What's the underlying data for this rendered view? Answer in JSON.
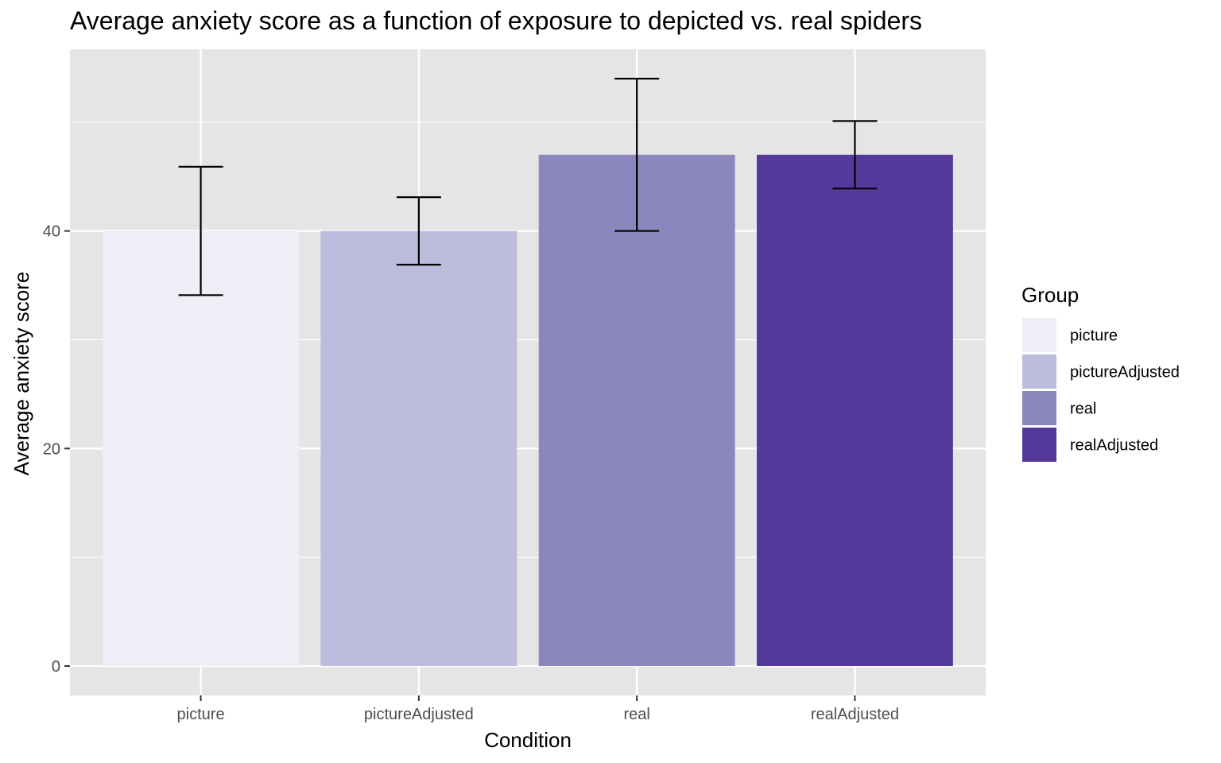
{
  "chart_data": {
    "type": "bar",
    "title": "Average anxiety score as a function of exposure to depicted vs. real spiders",
    "xlabel": "Condition",
    "ylabel": "Average anxiety score",
    "categories": [
      "picture",
      "pictureAdjusted",
      "real",
      "realAdjusted"
    ],
    "values": [
      40,
      40,
      47,
      47
    ],
    "error_bars": [
      {
        "lower": 34.1,
        "upper": 45.9
      },
      {
        "lower": 36.9,
        "upper": 43.1
      },
      {
        "lower": 40.0,
        "upper": 54.0
      },
      {
        "lower": 43.9,
        "upper": 50.1
      }
    ],
    "colors": [
      "#efedf5",
      "#bcbddc",
      "#8b86bd",
      "#54399a"
    ],
    "ylim": [
      -2.7,
      56.7
    ],
    "yticks": [
      0,
      20,
      40
    ],
    "y_minor_ticks": [
      10,
      30,
      50
    ],
    "grid": true,
    "legend": {
      "title": "Group",
      "position": "right",
      "entries": [
        "picture",
        "pictureAdjusted",
        "real",
        "realAdjusted"
      ]
    }
  }
}
